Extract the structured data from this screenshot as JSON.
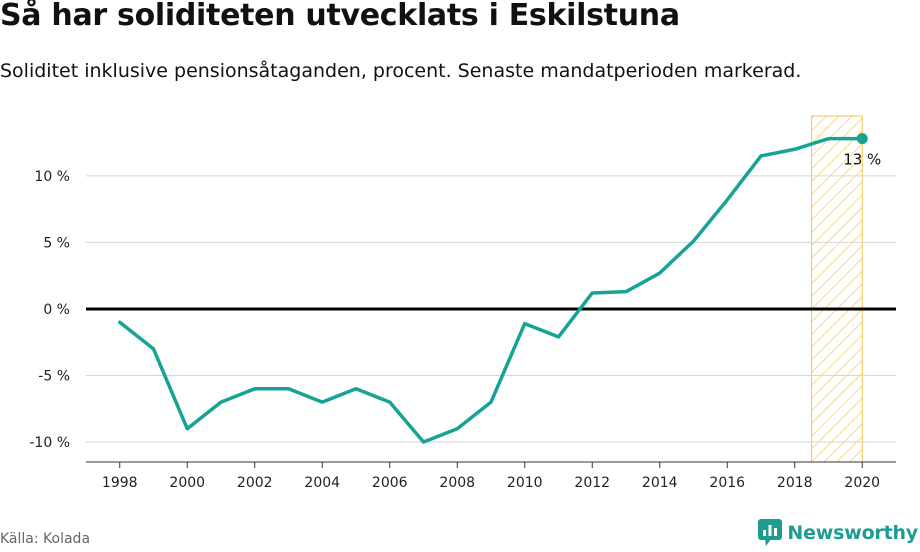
{
  "chart_data": {
    "type": "line",
    "title": "Så har soliditeten utvecklats i Eskilstuna",
    "subtitle": "Soliditet inklusive pensionsåtaganden, procent. Senaste mandatperioden markerad.",
    "xlabel": "",
    "ylabel": "",
    "x": [
      1998,
      1999,
      2000,
      2001,
      2002,
      2003,
      2004,
      2005,
      2006,
      2007,
      2008,
      2009,
      2010,
      2011,
      2012,
      2013,
      2014,
      2015,
      2016,
      2017,
      2018,
      2019,
      2020
    ],
    "series": [
      {
        "values": [
          -1,
          -3,
          -9,
          -7,
          -6,
          -6,
          -7,
          -6,
          -7,
          -10,
          -9,
          -7,
          -1.1,
          -2.1,
          1.2,
          1.3,
          2.7,
          5.1,
          8.2,
          11.5,
          12,
          12.8,
          12.8
        ],
        "color": "#16a394"
      }
    ],
    "xlim": [
      1997,
      2021
    ],
    "ylim": [
      -11.5,
      14.5
    ],
    "xticks": [
      1998,
      2000,
      2002,
      2004,
      2006,
      2008,
      2010,
      2012,
      2014,
      2016,
      2018,
      2020
    ],
    "xtick_labels": [
      "1998",
      "2000",
      "2002",
      "2004",
      "2006",
      "2008",
      "2010",
      "2012",
      "2014",
      "2016",
      "2018",
      "2020"
    ],
    "yticks": [
      -10,
      -5,
      0,
      5,
      10
    ],
    "ytick_labels": [
      "-10 %",
      "-5 %",
      "0 %",
      "5 %",
      "10 %"
    ],
    "highlight_range": [
      2018.5,
      2020
    ],
    "highlight_color": "#f4c54a",
    "end_label": "13 %",
    "zero_line": true,
    "grid": true,
    "legend": "none"
  },
  "source": "Källa: Kolada",
  "brand": {
    "name": "Newsworthy",
    "icon": "newsworthy-chart-icon",
    "color": "#1e9c94"
  }
}
